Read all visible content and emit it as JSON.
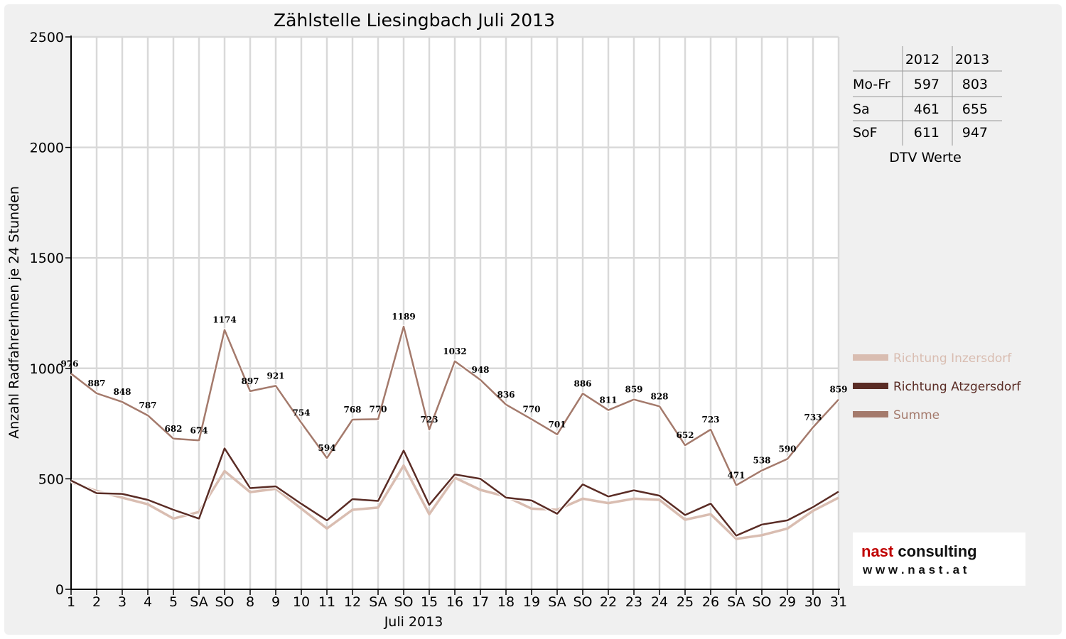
{
  "chart_data": {
    "type": "line",
    "title": "Zählstelle Liesingbach Juli 2013",
    "xlabel": "Juli 2013",
    "ylabel": "Anzahl RadfahrerInnen je 24 Stunden",
    "ylim": [
      0,
      2500
    ],
    "y_ticks": [
      "0",
      "500",
      "1000",
      "1500",
      "2000",
      "2500"
    ],
    "grid": true,
    "legend_position": "right",
    "categories": [
      "1",
      "2",
      "3",
      "4",
      "5",
      "SA",
      "SO",
      "8",
      "9",
      "10",
      "11",
      "12",
      "SA",
      "SO",
      "15",
      "16",
      "17",
      "18",
      "19",
      "SA",
      "SO",
      "22",
      "23",
      "24",
      "25",
      "26",
      "SA",
      "SO",
      "29",
      "30",
      "31"
    ],
    "weekend_color": "#dd0000",
    "weekend_label": "SO",
    "series": [
      {
        "name": "Richtung Inzersdorf",
        "color": "#d9bdb1",
        "values": [
          485,
          445,
          415,
          385,
          320,
          350,
          535,
          440,
          455,
          365,
          275,
          360,
          370,
          560,
          340,
          505,
          450,
          420,
          365,
          360,
          410,
          390,
          410,
          405,
          315,
          340,
          228,
          245,
          275,
          355,
          415
        ]
      },
      {
        "name": "Richtung Atzgersdorf",
        "color": "#5a2c25",
        "values": [
          492,
          435,
          432,
          405,
          360,
          320,
          638,
          458,
          466,
          387,
          312,
          408,
          400,
          628,
          382,
          520,
          500,
          415,
          402,
          342,
          475,
          420,
          448,
          424,
          336,
          388,
          243,
          293,
          312,
          372,
          442
        ]
      },
      {
        "name": "Summe",
        "color": "#a47a6c",
        "values": [
          976,
          887,
          848,
          787,
          682,
          674,
          1174,
          897,
          921,
          754,
          594,
          768,
          770,
          1189,
          723,
          1032,
          948,
          836,
          770,
          701,
          886,
          811,
          859,
          828,
          652,
          723,
          471,
          538,
          590,
          733,
          859
        ]
      }
    ],
    "data_labels": [
      "976",
      "887",
      "848",
      "787",
      "682",
      "674",
      "1174",
      "897",
      "921",
      "754",
      "594",
      "768",
      "770",
      "1189",
      "723",
      "1032",
      "948",
      "836",
      "770",
      "701",
      "886",
      "811",
      "859",
      "828",
      "652",
      "723",
      "471",
      "538",
      "590",
      "733",
      "859"
    ]
  },
  "dtv_table": {
    "headers": [
      "",
      "2012",
      "2013"
    ],
    "rows": [
      {
        "label": "Mo-Fr",
        "v2012": "597",
        "v2013": "803"
      },
      {
        "label": "Sa",
        "v2012": "461",
        "v2013": "655"
      },
      {
        "label": "SoF",
        "v2012": "611",
        "v2013": "947"
      }
    ],
    "caption": "DTV Werte"
  },
  "logo": {
    "brand_first": "nast",
    "brand_second": " consulting",
    "url": "w w w . n a s t . a t",
    "brand_color": "#c00000"
  }
}
